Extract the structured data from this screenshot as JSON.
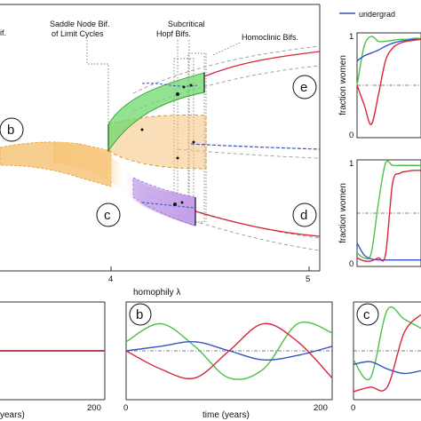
{
  "chart_data": [
    {
      "type": "line",
      "panel": "bifurcation",
      "xlabel": "homophily λ",
      "x_ticks": [
        "4",
        "5"
      ],
      "annotations": [
        "if.",
        "Saddle Node Bif. of Limit Cycles",
        "Subcritical Hopf Bifs.",
        "Homoclinic Bifs."
      ],
      "region_labels": [
        "b",
        "c",
        "d",
        "e"
      ],
      "colors": {
        "orange": "#f3b24f",
        "green": "#49c24a",
        "purple": "#a97fd6",
        "red": "#d7263d",
        "blue": "#3553c4",
        "grey": "#999999"
      }
    },
    {
      "type": "line",
      "panel": "legend",
      "legend": [
        "undergrad"
      ]
    },
    {
      "type": "line",
      "panel": "e",
      "ylabel": "fraction women",
      "y_ticks": [
        "1",
        "0"
      ],
      "series": [
        {
          "color": "#49c24a",
          "values": [
            0.5,
            0.9,
            1.0,
            0.95,
            0.95,
            0.96,
            0.97,
            0.97,
            0.98,
            0.98
          ]
        },
        {
          "color": "#3553c4",
          "values": [
            0.75,
            0.8,
            0.83,
            0.86,
            0.9,
            0.93,
            0.95,
            0.96,
            0.97,
            0.97
          ]
        },
        {
          "color": "#d7263d",
          "values": [
            0.5,
            0.3,
            0.1,
            0.4,
            0.75,
            0.88,
            0.93,
            0.95,
            0.96,
            0.97
          ]
        }
      ]
    },
    {
      "type": "line",
      "panel": "d",
      "ylabel": "fraction women",
      "y_ticks": [
        "1",
        "0"
      ],
      "series": [
        {
          "color": "#49c24a",
          "values": [
            0.1,
            0.05,
            0.1,
            0.6,
            1.0,
            0.98,
            0.98,
            0.98,
            0.98,
            0.98
          ]
        },
        {
          "color": "#3553c4",
          "values": [
            0.2,
            0.08,
            0.04,
            0.03,
            0.03,
            0.03,
            0.03,
            0.03,
            0.03,
            0.03
          ]
        },
        {
          "color": "#d7263d",
          "values": [
            0.05,
            0.02,
            0.02,
            0.05,
            0.08,
            0.8,
            0.9,
            0.92,
            0.93,
            0.93
          ]
        }
      ]
    },
    {
      "type": "line",
      "panel": "a",
      "xlabel": "years)",
      "x_ticks": [
        "200"
      ],
      "series": [
        {
          "color": "#49c24a",
          "values": [
            0.5,
            0.5,
            0.5,
            0.5,
            0.5
          ]
        },
        {
          "color": "#3553c4",
          "values": [
            0.5,
            0.5,
            0.5,
            0.5,
            0.5
          ]
        },
        {
          "color": "#d7263d",
          "values": [
            0.5,
            0.5,
            0.5,
            0.5,
            0.5
          ]
        }
      ]
    },
    {
      "type": "line",
      "panel": "b",
      "xlabel": "time (years)",
      "x_ticks": [
        "0",
        "200"
      ],
      "series": [
        {
          "color": "#49c24a",
          "values": [
            0.6,
            0.8,
            0.55,
            0.2,
            0.3,
            0.8,
            0.7
          ]
        },
        {
          "color": "#3553c4",
          "values": [
            0.5,
            0.55,
            0.6,
            0.5,
            0.4,
            0.45,
            0.55
          ]
        },
        {
          "color": "#d7263d",
          "values": [
            0.5,
            0.3,
            0.2,
            0.5,
            0.8,
            0.6,
            0.2
          ]
        }
      ]
    },
    {
      "type": "line",
      "panel": "c",
      "x_ticks": [
        "0"
      ],
      "series": [
        {
          "color": "#49c24a",
          "values": [
            0.4,
            0.2,
            0.95,
            0.85,
            0.75
          ]
        },
        {
          "color": "#3553c4",
          "values": [
            0.35,
            0.38,
            0.3,
            0.25,
            0.28
          ]
        },
        {
          "color": "#d7263d",
          "values": [
            0.05,
            0.1,
            0.1,
            0.7,
            0.9
          ]
        }
      ]
    }
  ]
}
